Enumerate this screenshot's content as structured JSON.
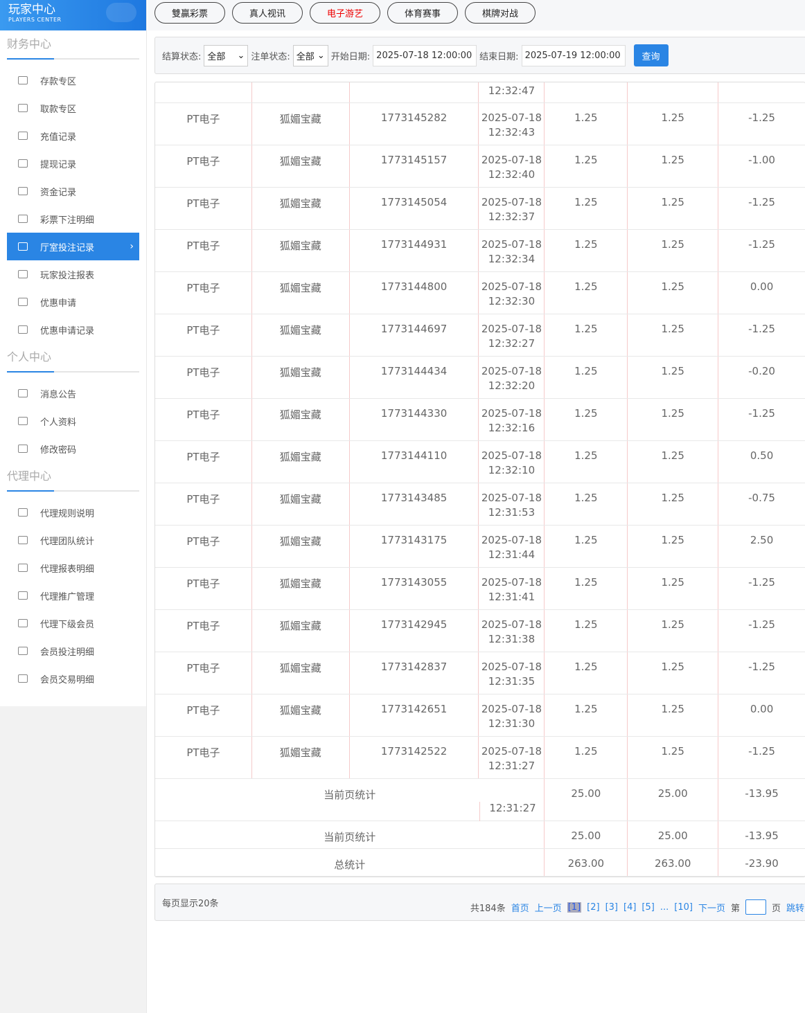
{
  "brand": {
    "title": "玩家中心",
    "subtitle": "PLAYERS CENTER"
  },
  "sidebar": [
    {
      "title": "财务中心",
      "items": [
        "存款专区",
        "取款专区",
        "充值记录",
        "提现记录",
        "资金记录",
        "彩票下注明细",
        "厅室投注记录",
        "玩家投注报表",
        "优惠申请",
        "优惠申请记录"
      ],
      "active": 6
    },
    {
      "title": "个人中心",
      "items": [
        "消息公告",
        "个人资料",
        "修改密码"
      ]
    },
    {
      "title": "代理中心",
      "items": [
        "代理规则说明",
        "代理团队统计",
        "代理报表明细",
        "代理推广管理",
        "代理下级会员",
        "会员投注明细",
        "会员交易明细"
      ]
    }
  ],
  "topnav": [
    {
      "label": "雙贏彩票"
    },
    {
      "label": "真人视讯"
    },
    {
      "label": "电子游艺",
      "active": true
    },
    {
      "label": "体育赛事"
    },
    {
      "label": "棋牌对战"
    }
  ],
  "filter": {
    "settle_label": "结算状态:",
    "settle_value": "全部",
    "order_label": "注单状态:",
    "order_value": "全部",
    "start_label": "开始日期:",
    "start_value": "2025-07-18 12:00:00",
    "end_label": "结束日期:",
    "end_value": "2025-07-19 12:00:00",
    "query": "查询"
  },
  "table": {
    "first_partial_time": "12:32:47",
    "rows": [
      [
        "PT电子",
        "狐媚宝藏",
        "1773145282",
        "2025-07-18",
        "12:32:43",
        "1.25",
        "1.25",
        "-1.25"
      ],
      [
        "PT电子",
        "狐媚宝藏",
        "1773145157",
        "2025-07-18",
        "12:32:40",
        "1.25",
        "1.25",
        "-1.00"
      ],
      [
        "PT电子",
        "狐媚宝藏",
        "1773145054",
        "2025-07-18",
        "12:32:37",
        "1.25",
        "1.25",
        "-1.25"
      ],
      [
        "PT电子",
        "狐媚宝藏",
        "1773144931",
        "2025-07-18",
        "12:32:34",
        "1.25",
        "1.25",
        "-1.25"
      ],
      [
        "PT电子",
        "狐媚宝藏",
        "1773144800",
        "2025-07-18",
        "12:32:30",
        "1.25",
        "1.25",
        "0.00"
      ],
      [
        "PT电子",
        "狐媚宝藏",
        "1773144697",
        "2025-07-18",
        "12:32:27",
        "1.25",
        "1.25",
        "-1.25"
      ],
      [
        "PT电子",
        "狐媚宝藏",
        "1773144434",
        "2025-07-18",
        "12:32:20",
        "1.25",
        "1.25",
        "-0.20"
      ],
      [
        "PT电子",
        "狐媚宝藏",
        "1773144330",
        "2025-07-18",
        "12:32:16",
        "1.25",
        "1.25",
        "-1.25"
      ],
      [
        "PT电子",
        "狐媚宝藏",
        "1773144110",
        "2025-07-18",
        "12:32:10",
        "1.25",
        "1.25",
        "0.50"
      ],
      [
        "PT电子",
        "狐媚宝藏",
        "1773143485",
        "2025-07-18",
        "12:31:53",
        "1.25",
        "1.25",
        "-0.75"
      ],
      [
        "PT电子",
        "狐媚宝藏",
        "1773143175",
        "2025-07-18",
        "12:31:44",
        "1.25",
        "1.25",
        "2.50"
      ],
      [
        "PT电子",
        "狐媚宝藏",
        "1773143055",
        "2025-07-18",
        "12:31:41",
        "1.25",
        "1.25",
        "-1.25"
      ],
      [
        "PT电子",
        "狐媚宝藏",
        "1773142945",
        "2025-07-18",
        "12:31:38",
        "1.25",
        "1.25",
        "-1.25"
      ],
      [
        "PT电子",
        "狐媚宝藏",
        "1773142837",
        "2025-07-18",
        "12:31:35",
        "1.25",
        "1.25",
        "-1.25"
      ],
      [
        "PT电子",
        "狐媚宝藏",
        "1773142651",
        "2025-07-18",
        "12:31:30",
        "1.25",
        "1.25",
        "0.00"
      ],
      [
        "PT电子",
        "狐媚宝藏",
        "1773142522",
        "2025-07-18",
        "12:31:27",
        "1.25",
        "1.25",
        "-1.25"
      ]
    ],
    "overlap_time": "12:31:27",
    "page_total": {
      "label": "当前页统计",
      "v1": "25.00",
      "v2": "25.00",
      "v3": "-13.95"
    },
    "grand_total": {
      "label": "总统计",
      "v1": "263.00",
      "v2": "263.00",
      "v3": "-23.90"
    }
  },
  "pagination": {
    "per_page": "每页显示20条",
    "total": "共184条",
    "first": "首页",
    "prev": "上一页",
    "pages": [
      "[1]",
      "[2]",
      "[3]",
      "[4]",
      "[5]"
    ],
    "ellipsis": "...",
    "last_page": "[10]",
    "next": "下一页",
    "goto_pre": "第",
    "goto_post": "页",
    "jump": "跳转"
  },
  "colors": {
    "accent": "#2a85e4",
    "active_nav": "#ee0000"
  }
}
